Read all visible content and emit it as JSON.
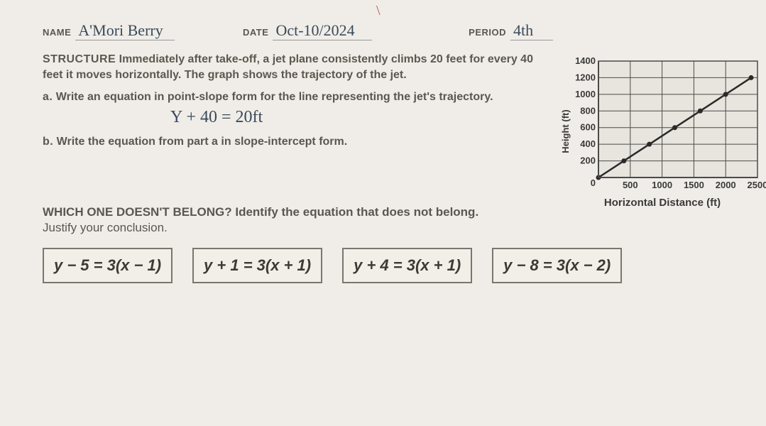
{
  "header": {
    "name_label": "NAME",
    "name_value": "A'Mori Berry",
    "date_label": "DATE",
    "date_value": "Oct-10/2024",
    "period_label": "PERIOD",
    "period_value": "4th"
  },
  "accent": "\\",
  "problem": {
    "lead": "STRUCTURE",
    "body": "Immediately after take-off, a jet plane consistently climbs 20 feet for every 40 feet it moves horizontally. The graph shows the trajectory of the jet.",
    "part_a_label": "a.",
    "part_a": "Write an equation in point-slope form for the line representing the jet's trajectory.",
    "written_a": "Y + 40 = 20ft",
    "part_b_label": "b.",
    "part_b": "Write the equation from part a in slope-intercept form."
  },
  "chart": {
    "type": "line",
    "x_label": "Horizontal Distance (ft)",
    "y_label": "Height (ft)",
    "x_ticks": [
      500,
      1000,
      1500,
      2000,
      2500
    ],
    "y_ticks": [
      200,
      400,
      600,
      800,
      1000,
      1200,
      1400
    ],
    "xlim": [
      0,
      2500
    ],
    "ylim": [
      0,
      1400
    ],
    "line_color": "#2a2a2a",
    "line_width": 2.5,
    "marker_color": "#2a2a2a",
    "marker_size": 3.5,
    "grid_color": "#4a4a4a",
    "background_color": "#e8e5de",
    "points_x": [
      0,
      400,
      800,
      1200,
      1600,
      2000,
      2400
    ],
    "points_y": [
      0,
      200,
      400,
      600,
      800,
      1000,
      1200
    ]
  },
  "wodb": {
    "lead": "WHICH ONE DOESN'T BELONG?",
    "prompt": "Identify the equation that does not belong.",
    "justify": "Justify your conclusion.",
    "equations": [
      "y − 5 = 3(x − 1)",
      "y + 1 = 3(x + 1)",
      "y + 4 = 3(x + 1)",
      "y − 8 = 3(x − 2)"
    ],
    "box_border_color": "#7a766e",
    "box_bg": "#f2efe9",
    "font_size": 22
  }
}
